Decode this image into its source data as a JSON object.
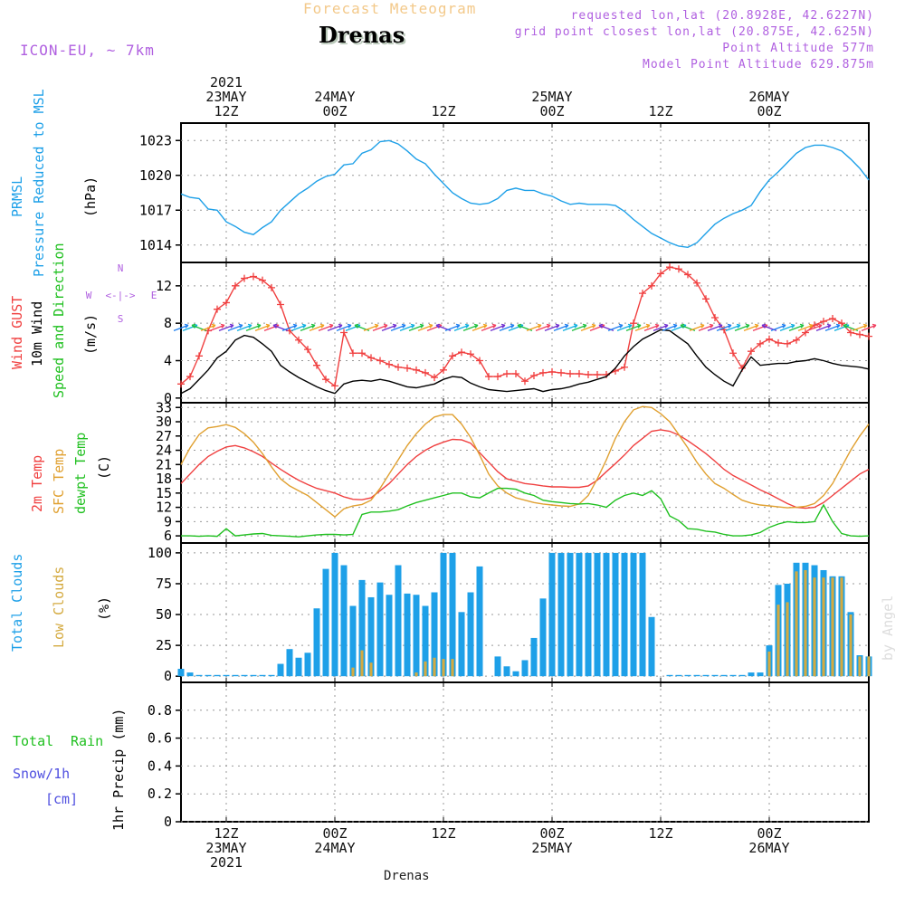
{
  "header": {
    "faint_title": "Forecast Meteogram",
    "location": "Drenas",
    "model": "ICON-EU, ~ 7km",
    "requested": "requested lon,lat (20.8928E, 42.6227N)",
    "grid_point": "grid point closest lon,lat (20.875E, 42.625N)",
    "point_altitude": "Point Altitude 577m",
    "model_altitude": "Model Point Altitude 629.875m",
    "watermark": "by Angel",
    "bottom_label": "Drenas"
  },
  "time_axis": {
    "top_ticks": [
      {
        "lines": [
          "2021",
          "23MAY",
          "12Z"
        ]
      },
      {
        "lines": [
          "24MAY",
          "00Z"
        ]
      },
      {
        "lines": [
          "12Z"
        ]
      },
      {
        "lines": [
          "25MAY",
          "00Z"
        ]
      },
      {
        "lines": [
          "12Z"
        ]
      },
      {
        "lines": [
          "26MAY",
          "00Z"
        ]
      }
    ],
    "bottom_ticks": [
      {
        "lines": [
          "12Z",
          "23MAY",
          "2021"
        ]
      },
      {
        "lines": [
          "00Z",
          "24MAY"
        ]
      },
      {
        "lines": [
          "12Z"
        ]
      },
      {
        "lines": [
          "00Z",
          "25MAY"
        ]
      },
      {
        "lines": [
          "12Z"
        ]
      },
      {
        "lines": [
          "00Z",
          "26MAY"
        ]
      }
    ],
    "tick_hours": [
      12,
      24,
      36,
      48,
      60,
      72
    ],
    "range_hours": [
      7,
      83
    ]
  },
  "panels": {
    "pressure": {
      "label_a": "PRMSL",
      "label_b": "Pressure Reduced to MSL",
      "unit": "(hPa)",
      "color_a": "#1ea0e8"
    },
    "wind": {
      "label_a": "Wind GUST",
      "label_b": "10m Wind",
      "label_c": "Speed and Direction",
      "unit": "(m/s)",
      "compass": {
        "n": "N",
        "s": "S",
        "w": "W",
        "e": "E",
        "arrow_row": "<-|->"
      }
    },
    "temp": {
      "label_a": "2m Temp",
      "label_b": "SFC Temp",
      "label_c": "dewpt Temp",
      "unit": "(C)"
    },
    "clouds": {
      "label_a": "Total Clouds",
      "label_b": "Low Clouds",
      "unit": "(%)"
    },
    "precip": {
      "label_a": "Total",
      "label_b": "Rain",
      "label_c": "Snow/1h",
      "label_d": "[cm]",
      "unit": "1hr Precip (mm)"
    }
  },
  "colors": {
    "pressure": "#1ea0e8",
    "gust": "#f04040",
    "wind": "#000000",
    "t2m": "#f04040",
    "sfc": "#e0a030",
    "dew": "#20c020",
    "total_clouds": "#1ea0e8",
    "low_clouds": "#d4aa40",
    "precip_total": "#20c020",
    "snow": "#5050e0",
    "label_purple": "#b060e0"
  },
  "chart_data": [
    {
      "type": "line",
      "title": "PRMSL Pressure Reduced to MSL",
      "ylabel": "(hPa)",
      "ylim": [
        1012.5,
        1024.5
      ],
      "yticks": [
        1014,
        1017,
        1020,
        1023
      ],
      "x_unit": "hours since 2021-05-23 00Z",
      "x": [
        7,
        8,
        9,
        10,
        11,
        12,
        13,
        14,
        15,
        16,
        17,
        18,
        19,
        20,
        21,
        22,
        23,
        24,
        25,
        26,
        27,
        28,
        29,
        30,
        31,
        32,
        33,
        34,
        35,
        36,
        37,
        38,
        39,
        40,
        41,
        42,
        43,
        44,
        45,
        46,
        47,
        48,
        49,
        50,
        51,
        52,
        53,
        54,
        55,
        56,
        57,
        58,
        59,
        60,
        61,
        62,
        63,
        64,
        65,
        66,
        67,
        68,
        69,
        70,
        71,
        72,
        73,
        74,
        75,
        76,
        77,
        78,
        79,
        80,
        81,
        82,
        83
      ],
      "series": [
        {
          "name": "PRMSL",
          "values": [
            1018.4,
            1018.1,
            1018.0,
            1017.1,
            1017.0,
            1016.0,
            1015.6,
            1015.1,
            1014.9,
            1015.5,
            1016.0,
            1017.0,
            1017.7,
            1018.4,
            1018.9,
            1019.5,
            1019.9,
            1020.1,
            1020.9,
            1021.0,
            1021.9,
            1022.2,
            1022.9,
            1023.0,
            1022.7,
            1022.1,
            1021.4,
            1021.0,
            1020.1,
            1019.3,
            1018.5,
            1018.0,
            1017.6,
            1017.5,
            1017.6,
            1018.0,
            1018.7,
            1018.9,
            1018.7,
            1018.7,
            1018.4,
            1018.2,
            1017.8,
            1017.5,
            1017.6,
            1017.5,
            1017.5,
            1017.5,
            1017.4,
            1016.9,
            1016.2,
            1015.6,
            1015.0,
            1014.6,
            1014.2,
            1013.9,
            1013.8,
            1014.2,
            1015.0,
            1015.8,
            1016.3,
            1016.7,
            1017.0,
            1017.4,
            1018.6,
            1019.6,
            1020.3,
            1021.1,
            1021.9,
            1022.4,
            1022.6,
            1022.6,
            1022.4,
            1022.1,
            1021.4,
            1020.6,
            1019.6
          ]
        }
      ]
    },
    {
      "type": "line",
      "title": "Wind GUST / 10m Wind Speed and Direction",
      "ylabel": "(m/s)",
      "ylim": [
        -0.5,
        14.5
      ],
      "yticks": [
        0,
        4,
        8,
        12
      ],
      "x_unit": "hours since 2021-05-23 00Z",
      "x": [
        7,
        8,
        9,
        10,
        11,
        12,
        13,
        14,
        15,
        16,
        17,
        18,
        19,
        20,
        21,
        22,
        23,
        24,
        25,
        26,
        27,
        28,
        29,
        30,
        31,
        32,
        33,
        34,
        35,
        36,
        37,
        38,
        39,
        40,
        41,
        42,
        43,
        44,
        45,
        46,
        47,
        48,
        49,
        50,
        51,
        52,
        53,
        54,
        55,
        56,
        57,
        58,
        59,
        60,
        61,
        62,
        63,
        64,
        65,
        66,
        67,
        68,
        69,
        70,
        71,
        72,
        73,
        74,
        75,
        76,
        77,
        78,
        79,
        80,
        81,
        82,
        83
      ],
      "series": [
        {
          "name": "Wind GUST",
          "values": [
            1.5,
            2.3,
            4.5,
            7.2,
            9.5,
            10.2,
            12.0,
            12.8,
            13.0,
            12.6,
            11.8,
            10.0,
            7.2,
            6.2,
            5.2,
            3.5,
            2.0,
            1.3,
            7.0,
            4.8,
            4.8,
            4.3,
            4.0,
            3.6,
            3.3,
            3.2,
            3.0,
            2.7,
            2.2,
            3.0,
            4.5,
            4.9,
            4.7,
            4.0,
            2.3,
            2.3,
            2.6,
            2.6,
            1.8,
            2.4,
            2.7,
            2.8,
            2.7,
            2.6,
            2.6,
            2.5,
            2.5,
            2.5,
            2.9,
            3.3,
            8.0,
            11.2,
            12.0,
            13.3,
            14.0,
            13.8,
            13.2,
            12.3,
            10.6,
            8.6,
            7.3,
            4.8,
            3.2,
            5.0,
            5.8,
            6.3,
            5.9,
            5.8,
            6.2,
            7.0,
            7.8,
            8.2,
            8.5,
            8.0,
            7.0,
            6.8,
            6.6
          ]
        },
        {
          "name": "10m Wind",
          "values": [
            0.5,
            1.0,
            2.0,
            3.0,
            4.3,
            5.0,
            6.2,
            6.7,
            6.5,
            5.8,
            5.0,
            3.5,
            2.8,
            2.2,
            1.7,
            1.2,
            0.8,
            0.5,
            1.5,
            1.8,
            1.9,
            1.8,
            2.0,
            1.8,
            1.5,
            1.2,
            1.1,
            1.3,
            1.5,
            2.0,
            2.3,
            2.2,
            1.6,
            1.2,
            0.9,
            0.8,
            0.7,
            0.8,
            0.9,
            1.0,
            0.7,
            0.9,
            1.0,
            1.2,
            1.5,
            1.7,
            2.0,
            2.3,
            3.2,
            4.5,
            5.5,
            6.3,
            6.8,
            7.3,
            7.2,
            6.5,
            5.8,
            4.5,
            3.3,
            2.5,
            1.8,
            1.3,
            3.0,
            4.4,
            3.5,
            3.6,
            3.7,
            3.7,
            3.9,
            4.0,
            4.2,
            4.0,
            3.7,
            3.5,
            3.4,
            3.3,
            3.1
          ]
        }
      ]
    },
    {
      "type": "line",
      "title": "2m Temp / SFC Temp / dewpt Temp",
      "ylabel": "(C)",
      "ylim": [
        4.5,
        34.0
      ],
      "yticks": [
        6,
        9,
        12,
        15,
        18,
        21,
        24,
        27,
        30,
        33
      ],
      "x_unit": "hours since 2021-05-23 00Z",
      "x": [
        7,
        8,
        9,
        10,
        11,
        12,
        13,
        14,
        15,
        16,
        17,
        18,
        19,
        20,
        21,
        22,
        23,
        24,
        25,
        26,
        27,
        28,
        29,
        30,
        31,
        32,
        33,
        34,
        35,
        36,
        37,
        38,
        39,
        40,
        41,
        42,
        43,
        44,
        45,
        46,
        47,
        48,
        49,
        50,
        51,
        52,
        53,
        54,
        55,
        56,
        57,
        58,
        59,
        60,
        61,
        62,
        63,
        64,
        65,
        66,
        67,
        68,
        69,
        70,
        71,
        72,
        73,
        74,
        75,
        76,
        77,
        78,
        79,
        80,
        81,
        82,
        83
      ],
      "series": [
        {
          "name": "2m Temp",
          "values": [
            17.0,
            19.0,
            21.0,
            22.7,
            23.8,
            24.7,
            25.0,
            24.5,
            23.7,
            22.7,
            21.3,
            20.0,
            18.8,
            17.7,
            16.8,
            16.0,
            15.5,
            15.0,
            14.2,
            13.7,
            13.6,
            14.0,
            15.5,
            17.0,
            19.0,
            21.0,
            22.7,
            24.0,
            25.0,
            25.7,
            26.3,
            26.2,
            25.5,
            23.5,
            21.5,
            19.5,
            18.0,
            17.5,
            17.0,
            16.8,
            16.5,
            16.3,
            16.3,
            16.2,
            16.2,
            16.5,
            17.7,
            19.5,
            21.2,
            23.0,
            25.0,
            26.5,
            28.0,
            28.3,
            28.0,
            27.2,
            26.0,
            24.7,
            23.3,
            21.7,
            20.0,
            18.7,
            17.7,
            16.7,
            15.7,
            14.8,
            13.8,
            12.8,
            12.0,
            11.8,
            12.0,
            13.0,
            14.5,
            16.0,
            17.5,
            19.0,
            20.0
          ]
        },
        {
          "name": "SFC Temp",
          "values": [
            21.0,
            24.5,
            27.3,
            28.7,
            29.0,
            29.4,
            28.8,
            27.5,
            25.7,
            23.3,
            20.5,
            18.0,
            16.5,
            15.5,
            14.5,
            13.0,
            11.5,
            10.0,
            11.7,
            12.3,
            12.6,
            13.5,
            16.0,
            19.0,
            22.0,
            25.0,
            27.5,
            29.5,
            31.0,
            31.5,
            31.5,
            29.5,
            26.7,
            23.0,
            19.0,
            16.5,
            15.0,
            14.0,
            13.5,
            13.0,
            12.7,
            12.5,
            12.3,
            12.2,
            12.7,
            14.5,
            18.0,
            22.0,
            26.5,
            30.0,
            32.5,
            33.2,
            33.0,
            31.7,
            30.0,
            27.3,
            24.5,
            21.5,
            19.0,
            17.0,
            16.0,
            14.7,
            13.5,
            12.9,
            12.5,
            12.3,
            12.1,
            11.9,
            12.0,
            12.2,
            12.8,
            14.5,
            17.0,
            20.5,
            24.0,
            27.0,
            29.5
          ]
        },
        {
          "name": "dewpt Temp",
          "values": [
            6.0,
            6.0,
            5.9,
            6.0,
            5.9,
            7.5,
            6.0,
            6.2,
            6.4,
            6.5,
            6.1,
            6.0,
            5.9,
            5.8,
            6.0,
            6.2,
            6.3,
            6.3,
            6.2,
            6.3,
            10.5,
            11.0,
            11.0,
            11.2,
            11.5,
            12.3,
            13.0,
            13.5,
            14.0,
            14.5,
            15.0,
            15.0,
            14.2,
            14.0,
            15.0,
            16.0,
            16.0,
            15.8,
            15.0,
            14.5,
            13.5,
            13.2,
            13.0,
            12.8,
            12.7,
            12.8,
            12.5,
            12.0,
            13.5,
            14.5,
            15.0,
            14.5,
            15.5,
            13.8,
            10.2,
            9.2,
            7.5,
            7.4,
            7.0,
            6.8,
            6.3,
            6.0,
            6.0,
            6.2,
            6.7,
            7.8,
            8.5,
            9.0,
            8.8,
            8.8,
            9.0,
            12.5,
            9.0,
            6.5,
            6.0,
            5.9,
            6.0
          ]
        }
      ]
    },
    {
      "type": "bar",
      "title": "Total Clouds / Low Clouds",
      "ylabel": "(%)",
      "ylim": [
        -5,
        108
      ],
      "yticks": [
        0,
        25,
        50,
        75,
        100
      ],
      "x_unit": "hours since 2021-05-23 00Z",
      "x": [
        7,
        8,
        9,
        10,
        11,
        12,
        13,
        14,
        15,
        16,
        17,
        18,
        19,
        20,
        21,
        22,
        23,
        24,
        25,
        26,
        27,
        28,
        29,
        30,
        31,
        32,
        33,
        34,
        35,
        36,
        37,
        38,
        39,
        40,
        41,
        42,
        43,
        44,
        45,
        46,
        47,
        48,
        49,
        50,
        51,
        52,
        53,
        54,
        55,
        56,
        57,
        58,
        59,
        60,
        61,
        62,
        63,
        64,
        65,
        66,
        67,
        68,
        69,
        70,
        71,
        72,
        73,
        74,
        75,
        76,
        77,
        78,
        79,
        80,
        81,
        82,
        83
      ],
      "series": [
        {
          "name": "Total Clouds",
          "values": [
            6,
            3,
            1,
            1,
            1,
            1,
            1,
            1,
            1,
            1,
            1,
            10,
            22,
            15,
            19,
            55,
            87,
            100,
            90,
            57,
            78,
            64,
            76,
            66,
            90,
            67,
            66,
            57,
            68,
            100,
            100,
            52,
            68,
            89,
            0,
            16,
            8,
            4,
            13,
            31,
            63,
            100,
            100,
            100,
            100,
            100,
            100,
            100,
            100,
            100,
            100,
            100,
            48,
            0,
            1,
            1,
            1,
            1,
            1,
            1,
            1,
            1,
            1,
            3,
            3,
            25,
            74,
            75,
            92,
            92,
            90,
            86,
            81,
            81,
            52,
            17,
            16
          ]
        },
        {
          "name": "Low Clouds",
          "values": [
            0,
            0,
            0,
            0,
            0,
            0,
            0,
            0,
            0,
            0,
            0,
            0,
            0,
            0,
            0,
            0,
            0,
            0,
            0,
            7,
            21,
            11,
            0,
            0,
            0,
            0,
            3,
            12,
            15,
            14,
            14,
            0,
            0,
            0,
            0,
            0,
            0,
            0,
            0,
            0,
            0,
            0,
            0,
            0,
            0,
            0,
            0,
            0,
            0,
            0,
            0,
            0,
            0,
            0,
            0,
            0,
            0,
            0,
            0,
            0,
            0,
            0,
            0,
            0,
            0,
            20,
            58,
            60,
            85,
            86,
            80,
            80,
            80,
            80,
            50,
            16,
            16
          ]
        }
      ]
    },
    {
      "type": "bar",
      "title": "1hr Precip",
      "ylabel": "1hr Precip (mm)",
      "ylim": [
        0,
        1.0
      ],
      "yticks": [
        0,
        0.2,
        0.4,
        0.6,
        0.8
      ],
      "series": [
        {
          "name": "Total Rain",
          "values": []
        }
      ]
    }
  ]
}
